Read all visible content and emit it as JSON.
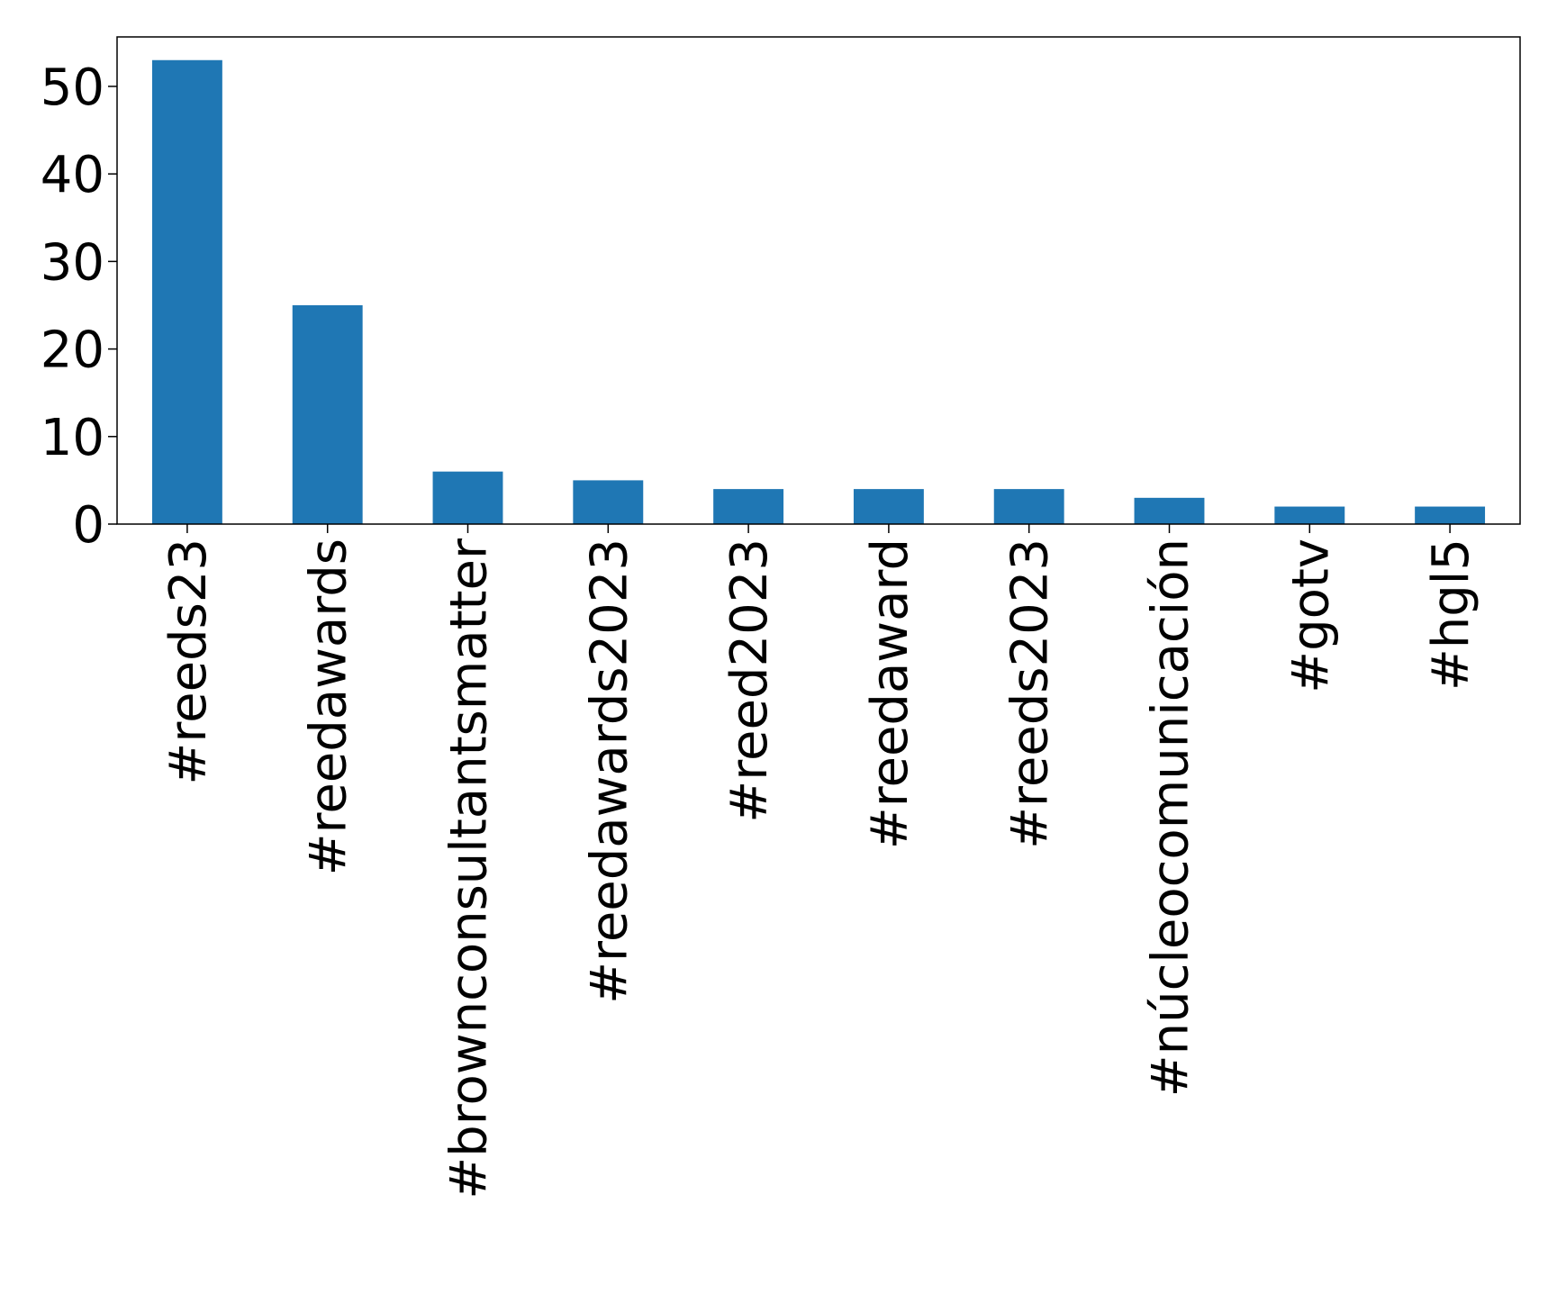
{
  "chart_data": {
    "type": "bar",
    "categories": [
      "#reeds23",
      "#reedawards",
      "#brownconsultantsmatter",
      "#reedawards2023",
      "#reed2023",
      "#reedaward",
      "#reeds2023",
      "#núcleocomunicación",
      "#gotv",
      "#hgl5"
    ],
    "values": [
      53,
      25,
      6,
      5,
      4,
      4,
      4,
      3,
      2,
      2
    ],
    "title": "",
    "xlabel": "",
    "ylabel": "",
    "ylim": [
      0,
      55.65
    ],
    "yticks": [
      "0",
      "10",
      "20",
      "30",
      "40",
      "50"
    ],
    "bar_color": "#1f77b4",
    "grid": false,
    "legend": "none"
  }
}
